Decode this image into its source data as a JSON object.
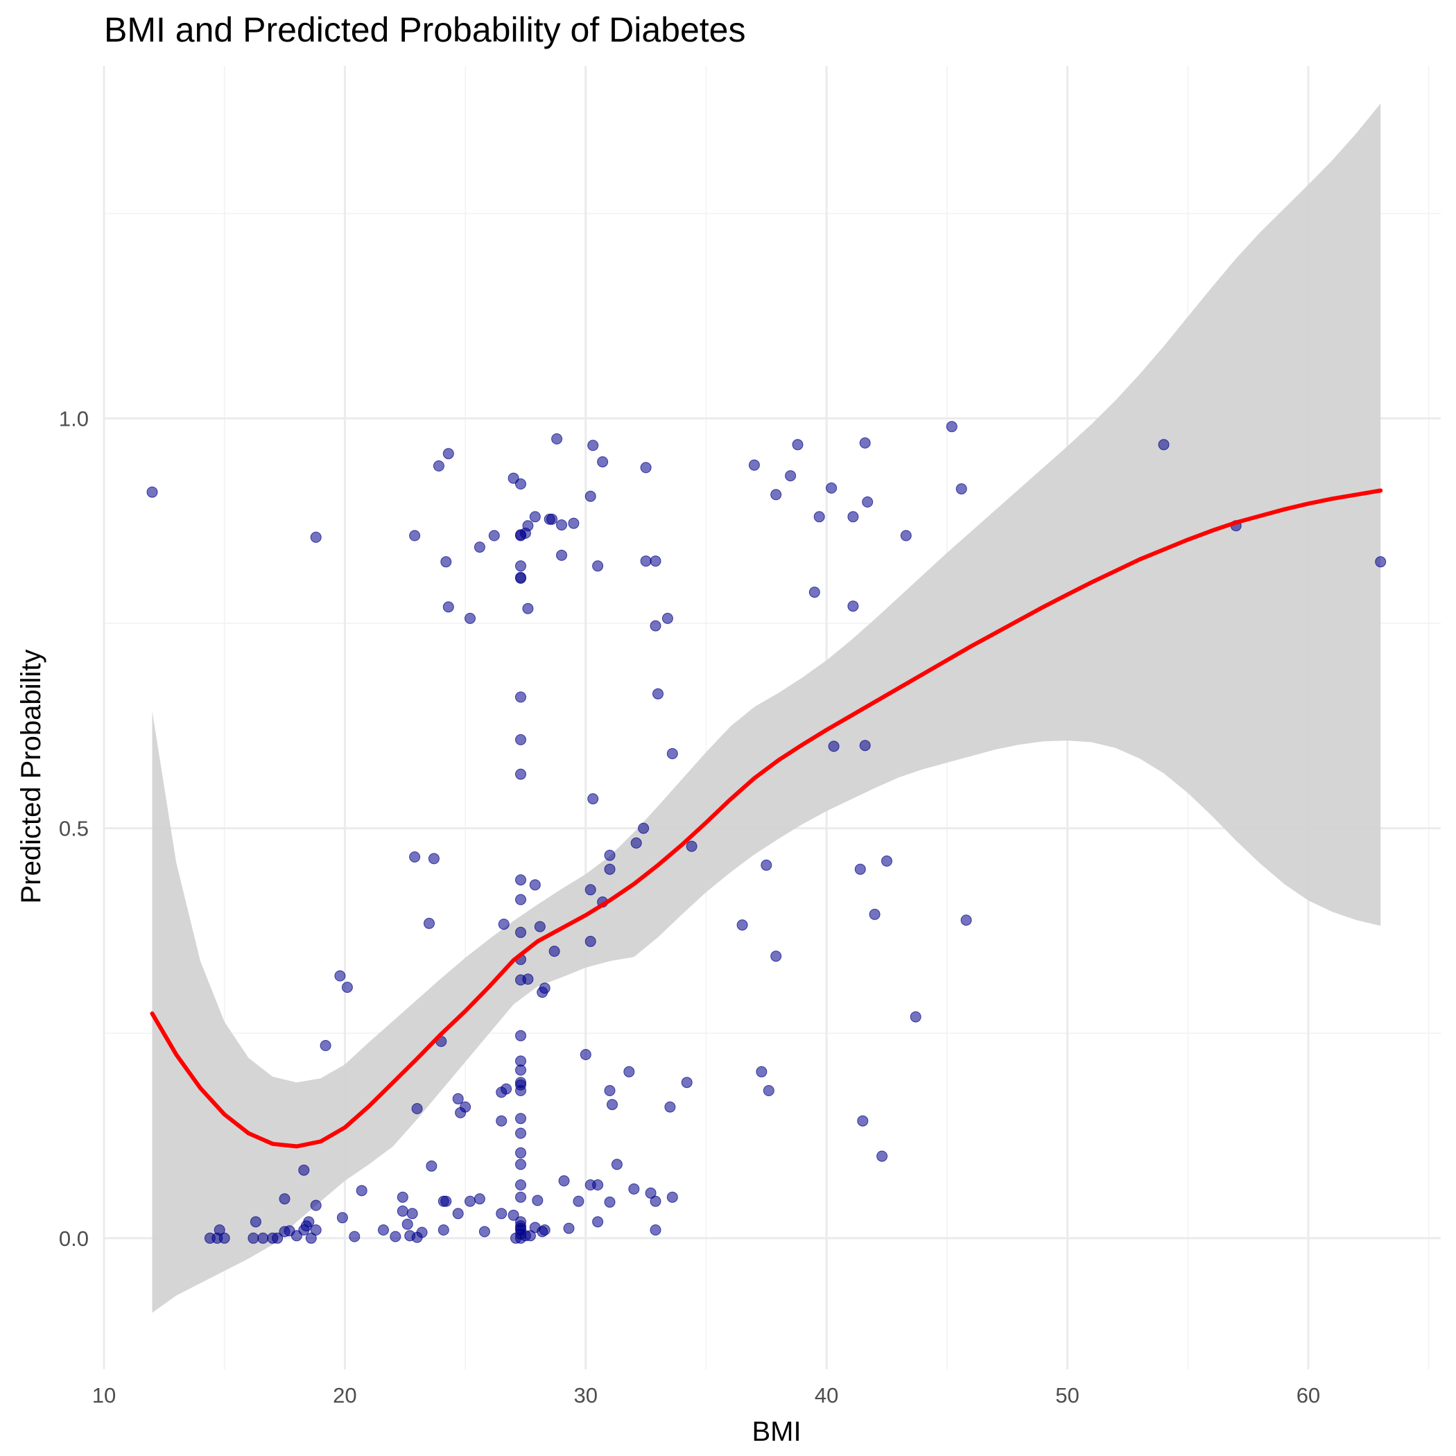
{
  "chart_data": {
    "type": "scatter",
    "title": "BMI and Predicted Probability of Diabetes",
    "xlabel": "BMI",
    "ylabel": "Predicted Probability",
    "xlim": [
      10,
      65.5
    ],
    "ylim": [
      -0.16,
      1.43
    ],
    "x_ticks": [
      10,
      20,
      30,
      40,
      50,
      60
    ],
    "x_tick_labels": [
      "10",
      "20",
      "30",
      "40",
      "50",
      "60"
    ],
    "y_ticks": [
      0.0,
      0.5,
      1.0
    ],
    "y_tick_labels": [
      "0.0",
      "0.5",
      "1.0"
    ],
    "grid": true,
    "point_color": "#00008b",
    "smooth_color": "#ff0000",
    "band_color": "#d3d3d3",
    "points": [
      [
        12.0,
        0.91
      ],
      [
        18.8,
        0.855
      ],
      [
        22.9,
        0.857
      ],
      [
        24.3,
        0.957
      ],
      [
        23.9,
        0.942
      ],
      [
        24.2,
        0.825
      ],
      [
        24.3,
        0.77
      ],
      [
        25.2,
        0.756
      ],
      [
        25.6,
        0.843
      ],
      [
        26.2,
        0.857
      ],
      [
        27.0,
        0.927
      ],
      [
        27.3,
        0.92
      ],
      [
        27.3,
        0.857
      ],
      [
        27.3,
        0.858
      ],
      [
        27.6,
        0.869
      ],
      [
        27.9,
        0.88
      ],
      [
        27.5,
        0.86
      ],
      [
        27.3,
        0.82
      ],
      [
        27.3,
        0.805
      ],
      [
        27.3,
        0.806
      ],
      [
        27.6,
        0.768
      ],
      [
        28.5,
        0.877
      ],
      [
        28.6,
        0.877
      ],
      [
        29.0,
        0.87
      ],
      [
        28.8,
        0.975
      ],
      [
        29.5,
        0.872
      ],
      [
        30.2,
        0.905
      ],
      [
        30.3,
        0.967
      ],
      [
        30.7,
        0.947
      ],
      [
        30.5,
        0.82
      ],
      [
        29.0,
        0.833
      ],
      [
        32.5,
        0.94
      ],
      [
        32.5,
        0.826
      ],
      [
        32.9,
        0.826
      ],
      [
        32.9,
        0.747
      ],
      [
        33.4,
        0.756
      ],
      [
        33.0,
        0.664
      ],
      [
        33.6,
        0.591
      ],
      [
        27.3,
        0.66
      ],
      [
        27.3,
        0.608
      ],
      [
        27.3,
        0.566
      ],
      [
        37.0,
        0.943
      ],
      [
        37.9,
        0.907
      ],
      [
        38.5,
        0.93
      ],
      [
        38.8,
        0.968
      ],
      [
        39.7,
        0.88
      ],
      [
        40.2,
        0.915
      ],
      [
        41.1,
        0.88
      ],
      [
        41.6,
        0.97
      ],
      [
        41.7,
        0.898
      ],
      [
        41.1,
        0.771
      ],
      [
        39.5,
        0.788
      ],
      [
        43.3,
        0.857
      ],
      [
        45.2,
        0.99
      ],
      [
        45.6,
        0.914
      ],
      [
        40.3,
        0.6
      ],
      [
        41.6,
        0.601
      ],
      [
        54.0,
        0.968
      ],
      [
        57.0,
        0.869
      ],
      [
        63.0,
        0.825
      ],
      [
        22.9,
        0.465
      ],
      [
        23.7,
        0.463
      ],
      [
        23.5,
        0.384
      ],
      [
        27.3,
        0.437
      ],
      [
        27.3,
        0.413
      ],
      [
        27.9,
        0.431
      ],
      [
        27.3,
        0.373
      ],
      [
        28.1,
        0.38
      ],
      [
        26.6,
        0.383
      ],
      [
        28.7,
        0.35
      ],
      [
        27.3,
        0.34
      ],
      [
        27.3,
        0.315
      ],
      [
        27.6,
        0.316
      ],
      [
        28.3,
        0.305
      ],
      [
        28.2,
        0.3
      ],
      [
        30.2,
        0.425
      ],
      [
        30.7,
        0.41
      ],
      [
        31.0,
        0.45
      ],
      [
        31.0,
        0.467
      ],
      [
        30.2,
        0.362
      ],
      [
        30.3,
        0.536
      ],
      [
        32.1,
        0.482
      ],
      [
        32.4,
        0.5
      ],
      [
        34.4,
        0.478
      ],
      [
        37.5,
        0.455
      ],
      [
        36.5,
        0.382
      ],
      [
        37.9,
        0.344
      ],
      [
        41.4,
        0.45
      ],
      [
        42.5,
        0.46
      ],
      [
        42.0,
        0.395
      ],
      [
        45.8,
        0.388
      ],
      [
        43.7,
        0.27
      ],
      [
        19.8,
        0.32
      ],
      [
        20.1,
        0.306
      ],
      [
        19.2,
        0.235
      ],
      [
        24.0,
        0.24
      ],
      [
        23.0,
        0.158
      ],
      [
        24.7,
        0.17
      ],
      [
        24.8,
        0.153
      ],
      [
        25.0,
        0.16
      ],
      [
        26.5,
        0.178
      ],
      [
        26.7,
        0.182
      ],
      [
        27.3,
        0.205
      ],
      [
        27.3,
        0.18
      ],
      [
        27.3,
        0.187
      ],
      [
        27.3,
        0.19
      ],
      [
        27.3,
        0.247
      ],
      [
        27.3,
        0.216
      ],
      [
        26.5,
        0.143
      ],
      [
        27.3,
        0.146
      ],
      [
        27.3,
        0.128
      ],
      [
        30.0,
        0.224
      ],
      [
        31.0,
        0.18
      ],
      [
        31.1,
        0.163
      ],
      [
        31.8,
        0.203
      ],
      [
        33.5,
        0.16
      ],
      [
        34.2,
        0.19
      ],
      [
        37.3,
        0.203
      ],
      [
        37.6,
        0.18
      ],
      [
        41.5,
        0.143
      ],
      [
        42.3,
        0.1
      ],
      [
        18.3,
        0.083
      ],
      [
        20.7,
        0.058
      ],
      [
        17.5,
        0.048
      ],
      [
        18.8,
        0.04
      ],
      [
        22.4,
        0.05
      ],
      [
        23.6,
        0.088
      ],
      [
        24.1,
        0.045
      ],
      [
        24.2,
        0.045
      ],
      [
        25.2,
        0.045
      ],
      [
        25.6,
        0.048
      ],
      [
        27.3,
        0.104
      ],
      [
        27.3,
        0.09
      ],
      [
        27.3,
        0.065
      ],
      [
        27.3,
        0.05
      ],
      [
        28.0,
        0.046
      ],
      [
        29.1,
        0.07
      ],
      [
        30.2,
        0.065
      ],
      [
        30.5,
        0.065
      ],
      [
        29.7,
        0.045
      ],
      [
        31.0,
        0.044
      ],
      [
        31.3,
        0.09
      ],
      [
        32.0,
        0.06
      ],
      [
        32.7,
        0.055
      ],
      [
        32.9,
        0.045
      ],
      [
        33.6,
        0.05
      ],
      [
        14.4,
        0.0
      ],
      [
        14.7,
        0.0
      ],
      [
        14.8,
        0.01
      ],
      [
        15.0,
        0.0
      ],
      [
        16.2,
        0.0
      ],
      [
        16.3,
        0.02
      ],
      [
        16.6,
        0.0
      ],
      [
        17.0,
        0.0
      ],
      [
        17.2,
        0.0
      ],
      [
        17.5,
        0.008
      ],
      [
        17.7,
        0.009
      ],
      [
        18.0,
        0.003
      ],
      [
        18.3,
        0.01
      ],
      [
        18.4,
        0.015
      ],
      [
        18.5,
        0.02
      ],
      [
        18.6,
        0.0
      ],
      [
        18.8,
        0.01
      ],
      [
        19.9,
        0.025
      ],
      [
        20.4,
        0.002
      ],
      [
        21.6,
        0.01
      ],
      [
        22.1,
        0.002
      ],
      [
        22.4,
        0.033
      ],
      [
        22.6,
        0.017
      ],
      [
        22.7,
        0.003
      ],
      [
        22.8,
        0.03
      ],
      [
        23.0,
        0.001
      ],
      [
        23.2,
        0.007
      ],
      [
        24.1,
        0.01
      ],
      [
        24.7,
        0.03
      ],
      [
        25.8,
        0.008
      ],
      [
        26.5,
        0.03
      ],
      [
        27.0,
        0.028
      ],
      [
        27.1,
        0.0
      ],
      [
        27.3,
        0.0
      ],
      [
        27.3,
        0.005
      ],
      [
        27.3,
        0.01
      ],
      [
        27.3,
        0.012
      ],
      [
        27.3,
        0.015
      ],
      [
        27.3,
        0.02
      ],
      [
        27.5,
        0.003
      ],
      [
        27.7,
        0.003
      ],
      [
        27.9,
        0.013
      ],
      [
        28.2,
        0.008
      ],
      [
        28.3,
        0.01
      ],
      [
        29.3,
        0.012
      ],
      [
        30.5,
        0.02
      ],
      [
        32.9,
        0.01
      ]
    ],
    "smooth": [
      [
        12,
        0.274
      ],
      [
        13,
        0.224
      ],
      [
        14,
        0.183
      ],
      [
        15,
        0.151
      ],
      [
        16,
        0.128
      ],
      [
        17,
        0.115
      ],
      [
        18,
        0.112
      ],
      [
        19,
        0.118
      ],
      [
        20,
        0.135
      ],
      [
        21,
        0.161
      ],
      [
        22,
        0.19
      ],
      [
        23,
        0.219
      ],
      [
        24,
        0.249
      ],
      [
        25,
        0.277
      ],
      [
        26,
        0.307
      ],
      [
        27,
        0.339
      ],
      [
        28,
        0.362
      ],
      [
        29,
        0.378
      ],
      [
        30,
        0.394
      ],
      [
        31,
        0.412
      ],
      [
        32,
        0.432
      ],
      [
        33,
        0.455
      ],
      [
        34,
        0.48
      ],
      [
        35,
        0.507
      ],
      [
        36,
        0.535
      ],
      [
        37,
        0.561
      ],
      [
        38,
        0.583
      ],
      [
        39,
        0.602
      ],
      [
        40,
        0.62
      ],
      [
        41,
        0.637
      ],
      [
        42,
        0.654
      ],
      [
        43,
        0.671
      ],
      [
        44,
        0.688
      ],
      [
        45,
        0.705
      ],
      [
        46,
        0.722
      ],
      [
        47,
        0.738
      ],
      [
        48,
        0.754
      ],
      [
        49,
        0.77
      ],
      [
        50,
        0.785
      ],
      [
        51,
        0.8
      ],
      [
        52,
        0.814
      ],
      [
        53,
        0.828
      ],
      [
        54,
        0.84
      ],
      [
        55,
        0.852
      ],
      [
        56,
        0.863
      ],
      [
        57,
        0.873
      ],
      [
        58,
        0.881
      ],
      [
        59,
        0.889
      ],
      [
        60,
        0.896
      ],
      [
        61,
        0.902
      ],
      [
        62,
        0.907
      ],
      [
        63,
        0.912
      ]
    ],
    "band_upper": [
      [
        12,
        0.643
      ],
      [
        13,
        0.458
      ],
      [
        14,
        0.338
      ],
      [
        15,
        0.264
      ],
      [
        16,
        0.22
      ],
      [
        17,
        0.197
      ],
      [
        18,
        0.19
      ],
      [
        19,
        0.195
      ],
      [
        20,
        0.212
      ],
      [
        21,
        0.239
      ],
      [
        22,
        0.265
      ],
      [
        23,
        0.291
      ],
      [
        24,
        0.317
      ],
      [
        25,
        0.342
      ],
      [
        26,
        0.365
      ],
      [
        27,
        0.387
      ],
      [
        28,
        0.407
      ],
      [
        29,
        0.426
      ],
      [
        30,
        0.444
      ],
      [
        31,
        0.466
      ],
      [
        32,
        0.495
      ],
      [
        33,
        0.527
      ],
      [
        34,
        0.56
      ],
      [
        35,
        0.593
      ],
      [
        36,
        0.624
      ],
      [
        37,
        0.648
      ],
      [
        38,
        0.665
      ],
      [
        39,
        0.684
      ],
      [
        40,
        0.705
      ],
      [
        41,
        0.729
      ],
      [
        42,
        0.755
      ],
      [
        43,
        0.782
      ],
      [
        44,
        0.809
      ],
      [
        45,
        0.836
      ],
      [
        46,
        0.862
      ],
      [
        47,
        0.888
      ],
      [
        48,
        0.914
      ],
      [
        49,
        0.94
      ],
      [
        50,
        0.966
      ],
      [
        51,
        0.993
      ],
      [
        52,
        1.022
      ],
      [
        53,
        1.054
      ],
      [
        54,
        1.088
      ],
      [
        55,
        1.124
      ],
      [
        56,
        1.16
      ],
      [
        57,
        1.195
      ],
      [
        58,
        1.227
      ],
      [
        59,
        1.256
      ],
      [
        60,
        1.285
      ],
      [
        61,
        1.315
      ],
      [
        62,
        1.348
      ],
      [
        63,
        1.384
      ]
    ],
    "band_lower": [
      [
        12,
        -0.091
      ],
      [
        13,
        -0.07
      ],
      [
        14,
        -0.055
      ],
      [
        15,
        -0.04
      ],
      [
        16,
        -0.025
      ],
      [
        17,
        -0.008
      ],
      [
        18,
        0.02
      ],
      [
        19,
        0.045
      ],
      [
        20,
        0.07
      ],
      [
        21,
        0.09
      ],
      [
        22,
        0.112
      ],
      [
        23,
        0.145
      ],
      [
        24,
        0.18
      ],
      [
        25,
        0.215
      ],
      [
        26,
        0.25
      ],
      [
        27,
        0.285
      ],
      [
        28,
        0.307
      ],
      [
        29,
        0.318
      ],
      [
        30,
        0.33
      ],
      [
        31,
        0.338
      ],
      [
        32,
        0.343
      ],
      [
        33,
        0.367
      ],
      [
        34,
        0.395
      ],
      [
        35,
        0.422
      ],
      [
        36,
        0.446
      ],
      [
        37,
        0.468
      ],
      [
        38,
        0.487
      ],
      [
        39,
        0.505
      ],
      [
        40,
        0.521
      ],
      [
        41,
        0.535
      ],
      [
        42,
        0.549
      ],
      [
        43,
        0.562
      ],
      [
        44,
        0.572
      ],
      [
        45,
        0.58
      ],
      [
        46,
        0.588
      ],
      [
        47,
        0.596
      ],
      [
        48,
        0.602
      ],
      [
        49,
        0.606
      ],
      [
        50,
        0.607
      ],
      [
        51,
        0.605
      ],
      [
        52,
        0.598
      ],
      [
        53,
        0.585
      ],
      [
        54,
        0.567
      ],
      [
        55,
        0.543
      ],
      [
        56,
        0.515
      ],
      [
        57,
        0.485
      ],
      [
        58,
        0.457
      ],
      [
        59,
        0.432
      ],
      [
        60,
        0.412
      ],
      [
        61,
        0.398
      ],
      [
        62,
        0.388
      ],
      [
        63,
        0.381
      ]
    ]
  }
}
